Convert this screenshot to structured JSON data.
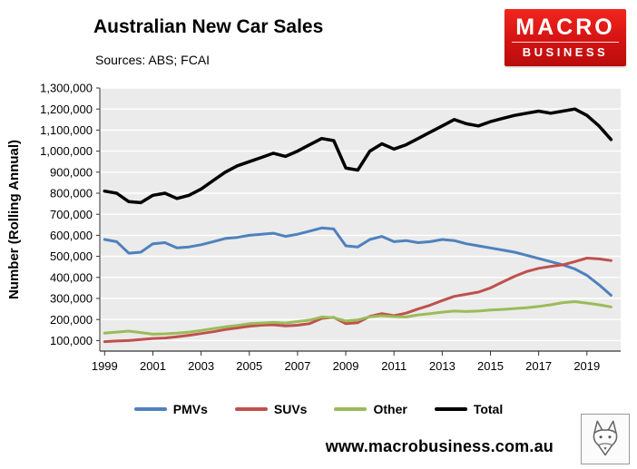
{
  "header": {
    "title": "Australian New Car Sales",
    "subtitle": "Sources: ABS; FCAI"
  },
  "logo": {
    "line1": "MACRO",
    "line2": "BUSINESS",
    "brand_color": "#d41313"
  },
  "footer": {
    "website": "www.macrobusiness.com.au"
  },
  "chart_data": {
    "type": "line",
    "title": "Australian New Car Sales",
    "subtitle": "Sources: ABS; FCAI",
    "xlabel": "",
    "ylabel": "Number (Rolling Annual)",
    "ylim": [
      50000,
      1300000
    ],
    "ytick_step": 100000,
    "xlim": [
      1998.8,
      2020.4
    ],
    "xticks": [
      1999,
      2001,
      2003,
      2005,
      2007,
      2009,
      2011,
      2013,
      2015,
      2017,
      2019
    ],
    "grid": true,
    "grid_color": "#ffffff",
    "plot_bg": "#ebebeb",
    "legend_position": "bottom",
    "x": [
      1999,
      1999.5,
      2000,
      2000.5,
      2001,
      2001.5,
      2002,
      2002.5,
      2003,
      2003.5,
      2004,
      2004.5,
      2005,
      2005.5,
      2006,
      2006.5,
      2007,
      2007.5,
      2008,
      2008.5,
      2009,
      2009.5,
      2010,
      2010.5,
      2011,
      2011.5,
      2012,
      2012.5,
      2013,
      2013.5,
      2014,
      2014.5,
      2015,
      2015.5,
      2016,
      2016.5,
      2017,
      2017.5,
      2018,
      2018.5,
      2019,
      2019.5,
      2020
    ],
    "series": [
      {
        "name": "PMVs",
        "color": "#4f81bd",
        "width": 3,
        "values": [
          580000,
          570000,
          515000,
          520000,
          560000,
          565000,
          540000,
          545000,
          555000,
          570000,
          585000,
          590000,
          600000,
          605000,
          610000,
          595000,
          605000,
          620000,
          635000,
          630000,
          550000,
          545000,
          580000,
          595000,
          570000,
          575000,
          565000,
          570000,
          580000,
          575000,
          560000,
          550000,
          540000,
          530000,
          520000,
          505000,
          490000,
          475000,
          460000,
          440000,
          410000,
          365000,
          315000
        ]
      },
      {
        "name": "SUVs",
        "color": "#c0504d",
        "width": 3,
        "values": [
          95000,
          98000,
          100000,
          105000,
          110000,
          112000,
          118000,
          125000,
          133000,
          142000,
          152000,
          160000,
          168000,
          173000,
          175000,
          170000,
          173000,
          180000,
          205000,
          210000,
          180000,
          185000,
          215000,
          228000,
          218000,
          230000,
          250000,
          268000,
          290000,
          310000,
          320000,
          330000,
          350000,
          378000,
          405000,
          428000,
          443000,
          452000,
          460000,
          475000,
          492000,
          488000,
          480000
        ]
      },
      {
        "name": "Other",
        "color": "#9bbb59",
        "width": 3,
        "values": [
          135000,
          140000,
          145000,
          138000,
          130000,
          132000,
          135000,
          140000,
          148000,
          157000,
          165000,
          172000,
          180000,
          183000,
          186000,
          183000,
          190000,
          197000,
          212000,
          208000,
          193000,
          198000,
          213000,
          218000,
          214000,
          212000,
          222000,
          228000,
          235000,
          240000,
          238000,
          240000,
          245000,
          248000,
          252000,
          256000,
          262000,
          270000,
          280000,
          285000,
          278000,
          270000,
          260000
        ]
      },
      {
        "name": "Total",
        "color": "#000000",
        "width": 3.5,
        "values": [
          810000,
          800000,
          760000,
          755000,
          790000,
          800000,
          775000,
          790000,
          820000,
          860000,
          900000,
          930000,
          950000,
          970000,
          990000,
          975000,
          1000000,
          1030000,
          1060000,
          1050000,
          920000,
          910000,
          1000000,
          1035000,
          1010000,
          1030000,
          1060000,
          1090000,
          1120000,
          1150000,
          1130000,
          1120000,
          1140000,
          1155000,
          1170000,
          1180000,
          1190000,
          1180000,
          1190000,
          1200000,
          1170000,
          1120000,
          1055000
        ]
      }
    ]
  }
}
